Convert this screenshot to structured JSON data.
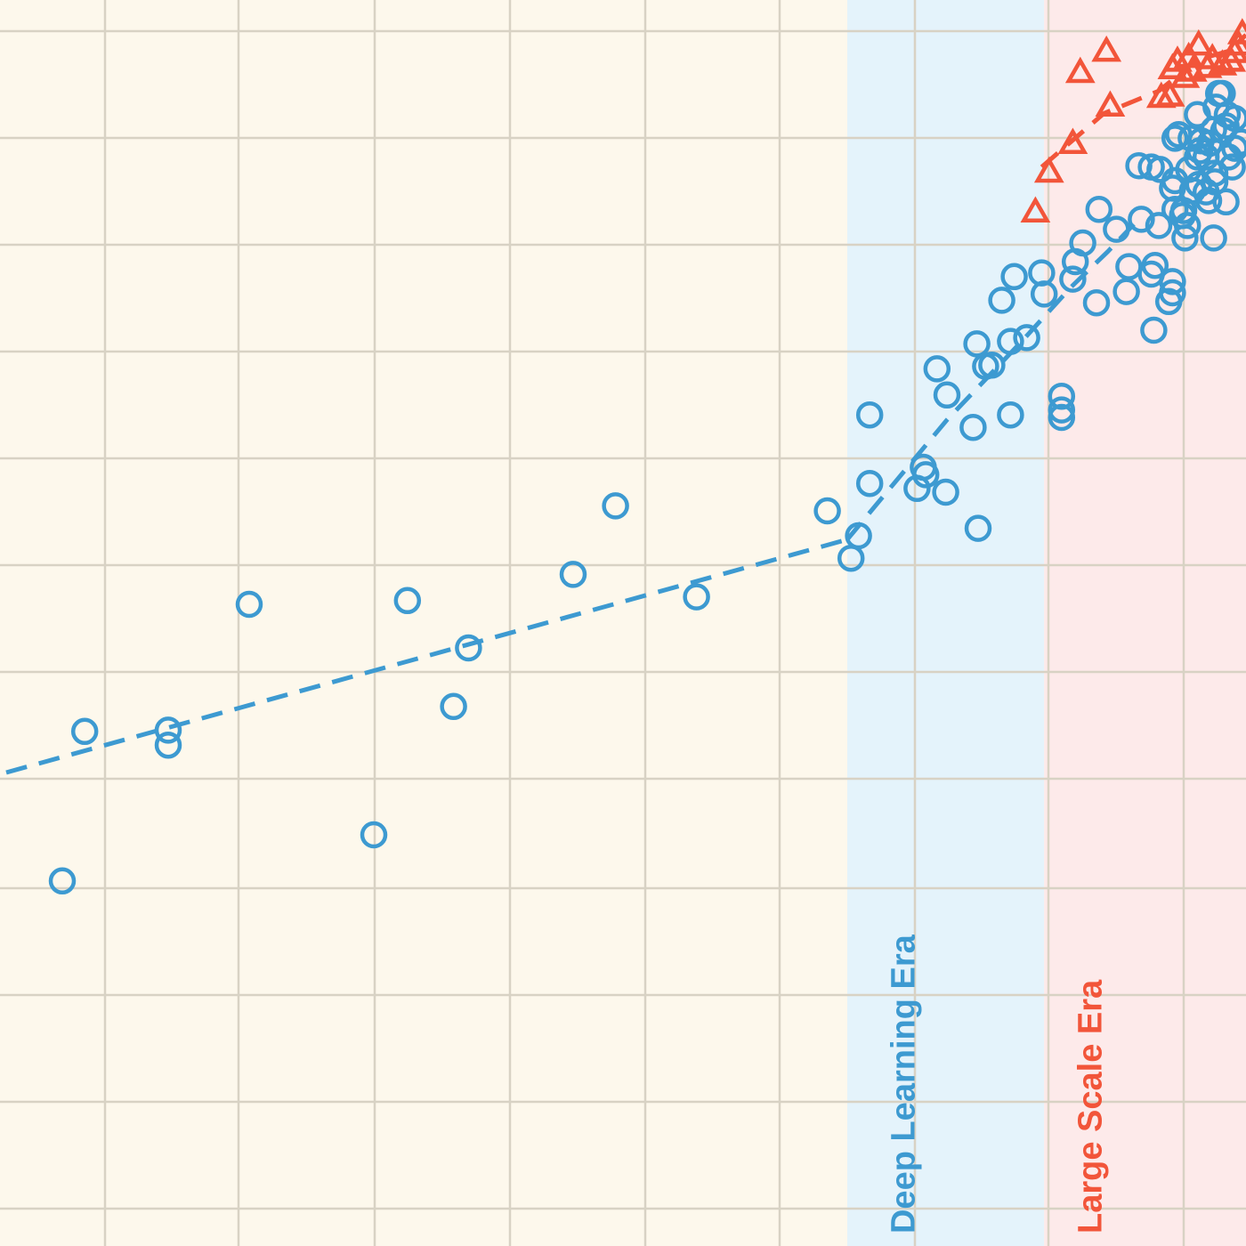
{
  "chart_data": {
    "type": "scatter",
    "title": "",
    "xlabel": "",
    "ylabel": "",
    "grid": true,
    "legend": "none",
    "xlim": [
      0,
      100
    ],
    "ylim": [
      0,
      100
    ],
    "colors": {
      "background": "#fdf8ec",
      "grid": "#d8d2c4",
      "blue": "#3d9ad1",
      "red": "#f2553a",
      "deep_learning_region": "#e4f3fb",
      "large_scale_region": "#fdeaea"
    },
    "regions": [
      {
        "label": "Deep Learning Era",
        "x_start": 68,
        "x_end": 83.8,
        "color": "#e4f3fb",
        "text_color": "#3d9ad1"
      },
      {
        "label": "Large Scale Era",
        "x_start": 83.8,
        "x_end": 100,
        "color": "#fdeaea",
        "text_color": "#f2553a"
      }
    ],
    "series": [
      {
        "marker": "circle",
        "color": "#3d9ad1",
        "points": [
          [
            5,
            29.3
          ],
          [
            6.8,
            41.3
          ],
          [
            13.5,
            40.2
          ],
          [
            13.5,
            41.4
          ],
          [
            20,
            51.5
          ],
          [
            30,
            33
          ],
          [
            32.7,
            51.8
          ],
          [
            36.4,
            43.3
          ],
          [
            37.6,
            48
          ],
          [
            46,
            53.9
          ],
          [
            49.4,
            59.4
          ],
          [
            55.9,
            52.1
          ],
          [
            66.4,
            59
          ],
          [
            68.3,
            55.2
          ],
          [
            68.9,
            57
          ],
          [
            69.8,
            66.7
          ],
          [
            69.8,
            61.2
          ],
          [
            73.6,
            60.8
          ],
          [
            74.1,
            62.5
          ],
          [
            74.3,
            61.9
          ],
          [
            75.9,
            60.5
          ],
          [
            75.2,
            70.4
          ],
          [
            76,
            68.3
          ],
          [
            78.1,
            65.7
          ],
          [
            78.5,
            57.6
          ],
          [
            78.4,
            72.4
          ],
          [
            79.1,
            70.6
          ],
          [
            79.6,
            70.7
          ],
          [
            80.4,
            75.9
          ],
          [
            81.1,
            66.7
          ],
          [
            81.1,
            72.6
          ],
          [
            81.4,
            77.8
          ],
          [
            82.4,
            72.9
          ],
          [
            83.6,
            78.1
          ],
          [
            83.8,
            76.4
          ],
          [
            85.2,
            68.2
          ],
          [
            85.2,
            67.1
          ],
          [
            85.2,
            66.5
          ],
          [
            86.1,
            77.6
          ],
          [
            86.3,
            79
          ],
          [
            86.9,
            80.5
          ],
          [
            88,
            75.7
          ],
          [
            88.2,
            83.2
          ],
          [
            89.6,
            81.6
          ],
          [
            90.4,
            76.6
          ],
          [
            90.6,
            78.6
          ],
          [
            91.6,
            82.4
          ],
          [
            92.4,
            78
          ],
          [
            92.6,
            73.5
          ],
          [
            92.7,
            78.7
          ],
          [
            92.4,
            86.6
          ],
          [
            93.1,
            86.4
          ],
          [
            93.8,
            75.8
          ],
          [
            94.1,
            76.5
          ],
          [
            91.4,
            86.7
          ],
          [
            93,
            81.9
          ],
          [
            94.1,
            77.4
          ],
          [
            94.3,
            83.2
          ],
          [
            94.1,
            84.9
          ],
          [
            94.3,
            88.9
          ],
          [
            94.3,
            85.5
          ],
          [
            94.6,
            89.2
          ],
          [
            94.9,
            82.7
          ],
          [
            95.3,
            81.9
          ],
          [
            95,
            83.1
          ],
          [
            95.1,
            80.9
          ],
          [
            95.4,
            86.4
          ],
          [
            95.6,
            88.9
          ],
          [
            95.7,
            84.7
          ],
          [
            96.1,
            90.8
          ],
          [
            96.3,
            87.9
          ],
          [
            96.2,
            85.2
          ],
          [
            96.8,
            87.4
          ],
          [
            96.8,
            84.6
          ],
          [
            97.1,
            88.5
          ],
          [
            97,
            83.9
          ],
          [
            97.5,
            85.4
          ],
          [
            97.4,
            89.6
          ],
          [
            97.6,
            91.4
          ],
          [
            97.4,
            80.9
          ],
          [
            98.1,
            92.5
          ],
          [
            98.2,
            89.5
          ],
          [
            97.8,
            92.5
          ],
          [
            98.9,
            86.6
          ],
          [
            98.6,
            87.4
          ],
          [
            98.4,
            83.8
          ],
          [
            99.1,
            90.5
          ],
          [
            99.6,
            88.6
          ],
          [
            99.1,
            88.1
          ],
          [
            98.5,
            90.8
          ],
          [
            97.5,
            86.1
          ],
          [
            96.4,
            88.7
          ],
          [
            96.1,
            87.4
          ],
          [
            98.4,
            89.9
          ]
        ]
      },
      {
        "marker": "triangle",
        "color": "#f2553a",
        "points": [
          [
            83.1,
            83
          ],
          [
            84.2,
            86.2
          ],
          [
            86.1,
            88.5
          ],
          [
            86.7,
            94.2
          ],
          [
            88.8,
            95.9
          ],
          [
            89.1,
            91.5
          ],
          [
            93.2,
            92.2
          ],
          [
            94.1,
            94.5
          ],
          [
            94.5,
            95.1
          ],
          [
            95.4,
            95.4
          ],
          [
            95.7,
            94.3
          ],
          [
            96.2,
            96.4
          ],
          [
            97.3,
            95.3
          ],
          [
            98.1,
            94.8
          ],
          [
            98.8,
            95.1
          ],
          [
            99.4,
            96.4
          ],
          [
            99.7,
            97.3
          ],
          [
            99.1,
            95.8
          ],
          [
            96.9,
            94.6
          ],
          [
            95.1,
            93.8
          ],
          [
            93.9,
            92.3
          ]
        ]
      }
    ],
    "trend_lines": [
      {
        "color": "#3d9ad1",
        "points": [
          [
            0.5,
            38
          ],
          [
            68,
            56.7
          ]
        ]
      },
      {
        "color": "#3d9ad1",
        "points": [
          [
            68,
            56.7
          ],
          [
            76,
            66.3
          ],
          [
            82,
            72.6
          ],
          [
            86,
            77
          ],
          [
            88.9,
            79.8
          ],
          [
            91,
            82
          ]
        ]
      },
      {
        "color": "#f2553a",
        "points": [
          [
            83.6,
            86.6
          ],
          [
            88.6,
            90.9
          ],
          [
            93,
            92.7
          ],
          [
            96.1,
            95.2
          ],
          [
            98.6,
            95.9
          ],
          [
            100,
            97.2
          ]
        ]
      }
    ],
    "annotations": [
      {
        "text": "Deep Learning Era",
        "x": 73.4,
        "y": 1,
        "color": "#3d9ad1",
        "rotation": -90
      },
      {
        "text": "Large Scale Era",
        "x": 88.4,
        "y": 1,
        "color": "#f2553a",
        "rotation": -90
      }
    ]
  }
}
